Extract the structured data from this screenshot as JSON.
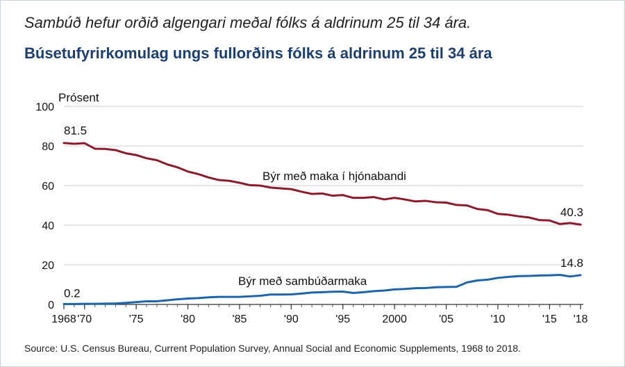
{
  "header": {
    "subtitle": "Sambúð hefur orðið algengari meðal fólks á aldrinum 25 til 34 ára.",
    "title": "Búsetufyrirkomulag ungs fullorðins fólks á aldrinum 25 til 34 ára"
  },
  "footer": {
    "source": "Source: U.S. Census Bureau, Current Population Survey, Annual Social and Economic Supplements, 1968 to 2018."
  },
  "colors": {
    "title": "#1c3f73",
    "married": "#8b1a2b",
    "cohabiting": "#1f63a8",
    "grid": "#cfcfcf"
  },
  "chart_data": {
    "type": "line",
    "title": "Búsetufyrirkomulag ungs fullorðins fólks á aldrinum 25 til 34 ára",
    "ylabel": "Prósent",
    "xlabel": "",
    "xlim": [
      1968,
      2018
    ],
    "ylim": [
      0,
      100
    ],
    "grid": true,
    "y_ticks": [
      {
        "value": 0,
        "label": "0"
      },
      {
        "value": 20,
        "label": "20"
      },
      {
        "value": 40,
        "label": "40"
      },
      {
        "value": 60,
        "label": "60"
      },
      {
        "value": 80,
        "label": "80"
      },
      {
        "value": 100,
        "label": "100"
      }
    ],
    "x_ticks": [
      {
        "value": 1968,
        "label": "1968"
      },
      {
        "value": 1970,
        "label": "'70"
      },
      {
        "value": 1975,
        "label": "'75"
      },
      {
        "value": 1980,
        "label": "'80"
      },
      {
        "value": 1985,
        "label": "'85"
      },
      {
        "value": 1990,
        "label": "'90"
      },
      {
        "value": 1995,
        "label": "'95"
      },
      {
        "value": 2000,
        "label": "2000"
      },
      {
        "value": 2005,
        "label": "'05"
      },
      {
        "value": 2010,
        "label": "'10"
      },
      {
        "value": 2015,
        "label": "'15"
      },
      {
        "value": 2018,
        "label": "'18"
      }
    ],
    "x": [
      1968,
      1969,
      1970,
      1971,
      1972,
      1973,
      1974,
      1975,
      1976,
      1977,
      1978,
      1979,
      1980,
      1981,
      1982,
      1983,
      1984,
      1985,
      1986,
      1987,
      1988,
      1989,
      1990,
      1991,
      1992,
      1993,
      1994,
      1995,
      1996,
      1997,
      1998,
      1999,
      2000,
      2001,
      2002,
      2003,
      2004,
      2005,
      2006,
      2007,
      2008,
      2009,
      2010,
      2011,
      2012,
      2013,
      2014,
      2015,
      2016,
      2017,
      2018
    ],
    "series": [
      {
        "name": "Býr með maka í hjónabandi",
        "color": "#8b1a2b",
        "values": [
          81.5,
          81.1,
          81.4,
          78.6,
          78.5,
          77.9,
          76.3,
          75.4,
          73.8,
          72.8,
          70.7,
          69.2,
          67.1,
          65.8,
          64.1,
          62.8,
          62.4,
          61.4,
          60.2,
          60.0,
          59.0,
          58.6,
          58.2,
          56.9,
          55.8,
          56.0,
          54.9,
          55.2,
          53.8,
          53.8,
          54.2,
          53.0,
          53.8,
          53.0,
          52.0,
          52.3,
          51.6,
          51.4,
          50.2,
          50.0,
          48.2,
          47.6,
          45.7,
          45.3,
          44.5,
          43.9,
          42.6,
          42.4,
          40.6,
          41.1,
          40.3
        ]
      },
      {
        "name": "Býr með sambúðarmaka",
        "color": "#1f63a8",
        "values": [
          0.2,
          0.2,
          0.3,
          0.3,
          0.4,
          0.5,
          0.8,
          1.2,
          1.6,
          1.6,
          2.1,
          2.6,
          3.0,
          3.2,
          3.6,
          3.8,
          3.8,
          3.8,
          4.1,
          4.4,
          5.0,
          5.0,
          5.1,
          5.5,
          6.0,
          6.2,
          6.4,
          6.5,
          5.8,
          6.2,
          6.7,
          7.0,
          7.6,
          7.8,
          8.2,
          8.3,
          8.7,
          8.8,
          8.9,
          11.1,
          12.1,
          12.5,
          13.4,
          13.9,
          14.3,
          14.4,
          14.6,
          14.7,
          14.9,
          14.1,
          14.8
        ]
      }
    ],
    "annotations": [
      {
        "series": 0,
        "x": 1968,
        "text": "81.5"
      },
      {
        "series": 0,
        "x": 2018,
        "text": "40.3"
      },
      {
        "series": 1,
        "x": 1968,
        "text": "0.2"
      },
      {
        "series": 1,
        "x": 2018,
        "text": "14.8"
      }
    ]
  }
}
